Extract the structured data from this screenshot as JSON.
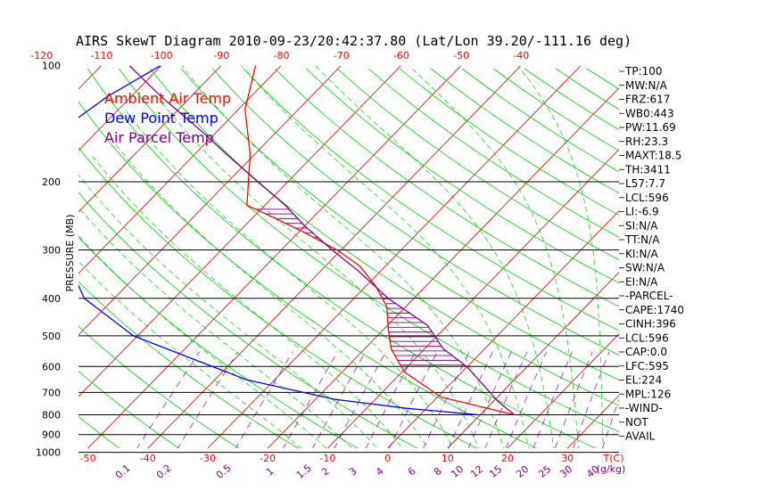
{
  "chart_data": {
    "type": "line",
    "title": "AIRS SkewT Diagram 2010-09-23/20:42:37.80 (Lat/Lon 39.20/-111.16 deg)",
    "ylabel": "PRESSURE (MB)",
    "x_unit_label": "T(C)",
    "mixing_ratio_unit_label": "(g/kg)",
    "pressure_ticks": [
      "100",
      "200",
      "300",
      "400",
      "500",
      "600",
      "700",
      "800",
      "900",
      "1000"
    ],
    "pressure_tick_values": [
      100,
      200,
      300,
      400,
      500,
      600,
      700,
      800,
      900,
      1000
    ],
    "pressure_lines": [
      200,
      300,
      400,
      500,
      600,
      700,
      800,
      900,
      1000
    ],
    "ylim": [
      1000,
      100
    ],
    "top_temp_ticks": [
      "-120",
      "-110",
      "-100",
      "-90",
      "-80",
      "-70",
      "-60",
      "-50",
      "-40"
    ],
    "top_temp_values": [
      -120,
      -110,
      -100,
      -90,
      -80,
      -70,
      -60,
      -50,
      -40
    ],
    "bottom_temp_ticks": [
      "-50",
      "-40",
      "-30",
      "-20",
      "-10",
      "0",
      "10",
      "20",
      "30"
    ],
    "bottom_temp_values": [
      -50,
      -40,
      -30,
      -20,
      -10,
      0,
      10,
      20,
      30
    ],
    "mixing_ratio_ticks": [
      "0.1",
      "0.2",
      "0.5",
      "1",
      "1.5",
      "2",
      "3",
      "4",
      "6",
      "8",
      "10",
      "12",
      "15",
      "20",
      "25",
      "30",
      "40"
    ],
    "mixing_ratio_values": [
      0.1,
      0.2,
      0.5,
      1,
      1.5,
      2,
      3,
      4,
      6,
      8,
      10,
      12,
      15,
      20,
      25,
      30,
      40
    ],
    "legend": [
      {
        "label": "Ambient Air Temp",
        "color": "#ff0000"
      },
      {
        "label": "Dew Point Temp",
        "color": "#0000ff"
      },
      {
        "label": "Air Parcel Temp",
        "color": "#800080"
      }
    ],
    "series": [
      {
        "name": "Ambient Air Temp",
        "color": "#ff0000",
        "points": [
          [
            800,
            15.7
          ],
          [
            720,
            0.6
          ],
          [
            620,
            -9.6
          ],
          [
            540,
            -15.6
          ],
          [
            480,
            -19.3
          ],
          [
            420,
            -23.2
          ],
          [
            370,
            -28.6
          ],
          [
            330,
            -34.3
          ],
          [
            300,
            -40.7
          ],
          [
            270,
            -49.1
          ],
          [
            245,
            -57.4
          ],
          [
            230,
            -63
          ],
          [
            170,
            -70.7
          ],
          [
            130,
            -78.9
          ],
          [
            100,
            -84.3
          ]
        ]
      },
      {
        "name": "Dew Point Temp",
        "color": "#0000ff",
        "points": [
          [
            800,
            9.7
          ],
          [
            770,
            -3.2
          ],
          [
            730,
            -16.7
          ],
          [
            650,
            -34.6
          ],
          [
            500,
            -60.7
          ],
          [
            400,
            -75
          ],
          [
            300,
            -86.5
          ],
          [
            250,
            -90.5
          ],
          [
            200,
            -99.5
          ],
          [
            150,
            -106.5
          ],
          [
            120,
            -103.9
          ],
          [
            100,
            -100.1
          ]
        ]
      },
      {
        "name": "Air Parcel Temp",
        "color": "#800080",
        "points": [
          [
            800,
            15.7
          ],
          [
            740,
            10.9
          ],
          [
            600,
            -0.1
          ],
          [
            540,
            -6.9
          ],
          [
            470,
            -13.3
          ],
          [
            400,
            -24.3
          ],
          [
            340,
            -33.7
          ],
          [
            300,
            -41.5
          ],
          [
            260,
            -50
          ],
          [
            230,
            -56.6
          ],
          [
            200,
            -65
          ],
          [
            170,
            -74.6
          ],
          [
            150,
            -81.8
          ],
          [
            120,
            -95.2
          ],
          [
            100,
            -105.4
          ]
        ]
      }
    ],
    "side_panel": [
      "TP:100",
      "MW:N/A",
      "FRZ:617",
      "WB0:443",
      "PW:11.69",
      "RH:23.3",
      "MAXT:18.5",
      "TH:3411",
      "L57:7.7",
      "LCL:596",
      "LI:-6.9",
      "SI:N/A",
      "TT:N/A",
      "KI:N/A",
      "SW:N/A",
      "EI:N/A",
      "-PARCEL-",
      "CAPE:1740",
      "CINH:396",
      "LCL:596",
      "CAP:0.0",
      "LFC:595",
      "EL:224",
      "MPL:126",
      "-WIND-",
      "NOT",
      "AVAIL"
    ],
    "colors": {
      "dry_adiabat": "#00cc00",
      "isotherm": "#cc0000",
      "mixing_ratio": "#8800cc",
      "moist_adiabat": "#00cc00",
      "isobar": "#000000",
      "cape_hatch": "#800080"
    }
  }
}
